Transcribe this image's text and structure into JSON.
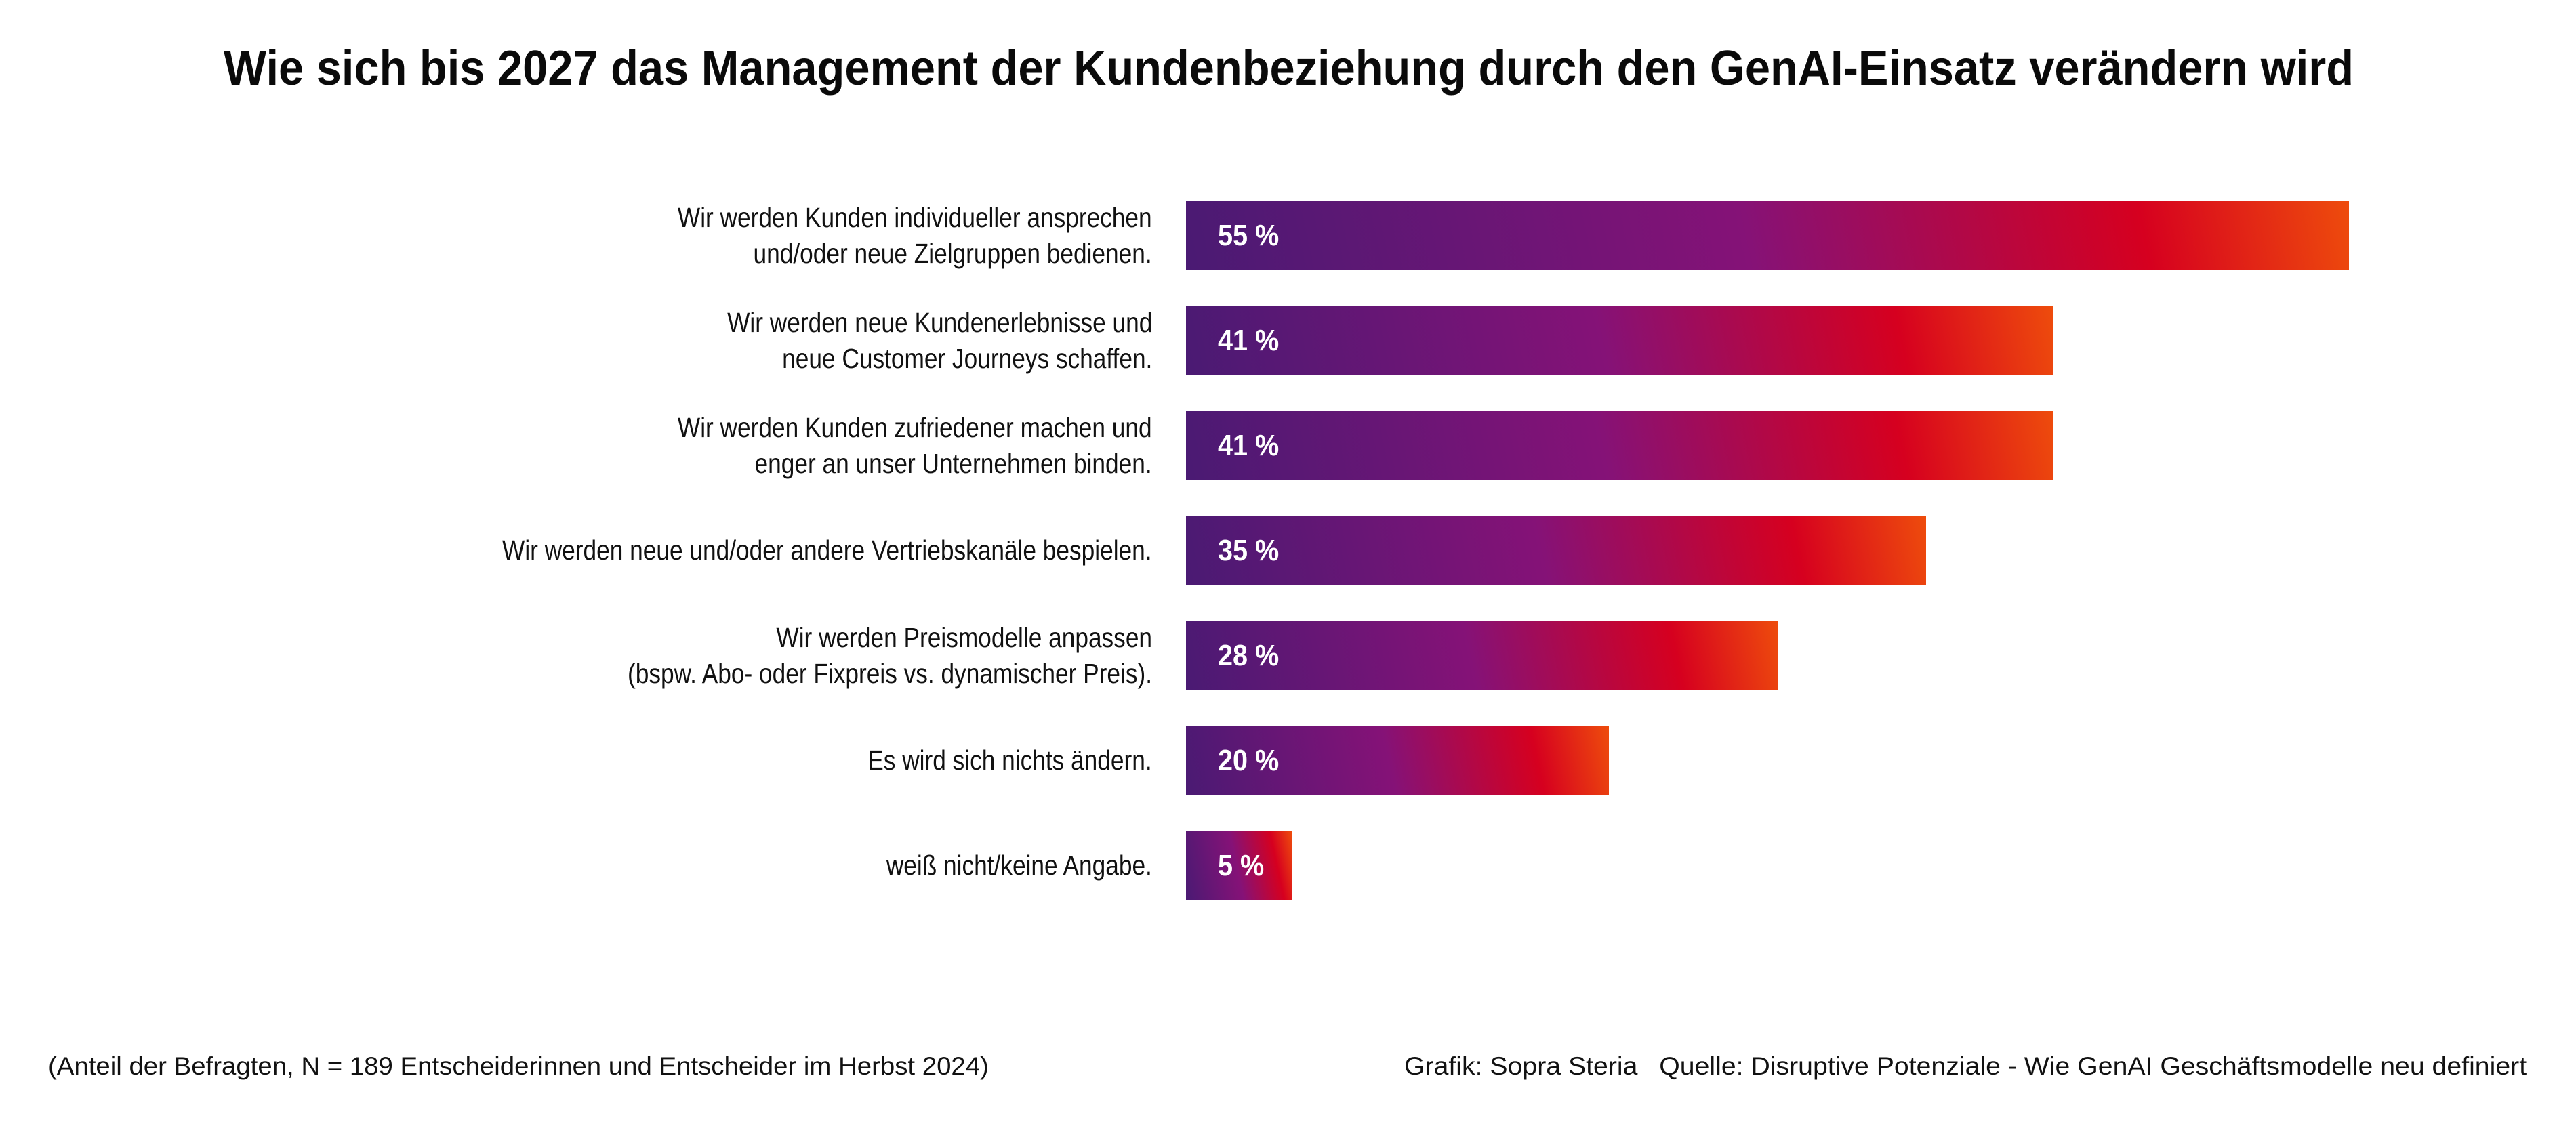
{
  "chart_data": {
    "type": "bar",
    "orientation": "horizontal",
    "title": "Wie sich bis 2027 das Management der Kundenbeziehung durch den GenAI-Einsatz verändern wird",
    "xlabel": "",
    "ylabel": "",
    "xlim": [
      0,
      55
    ],
    "grid": false,
    "legend": "none",
    "unit": "%",
    "categories": [
      "Wir werden Kunden individueller ansprechen und/oder neue Zielgruppen bedienen.",
      "Wir werden neue Kundenerlebnisse und neue Customer Journeys schaffen.",
      "Wir werden Kunden zufriedener machen und enger an unser Unternehmen binden.",
      "Wir werden neue und/oder andere Vertriebskanäle bespielen.",
      "Wir werden Preismodelle anpassen (bspw. Abo- oder Fixpreis vs. dynamischer Preis).",
      "Es wird sich nichts ändern.",
      "weiß nicht/keine Angabe."
    ],
    "category_lines": [
      [
        "Wir werden Kunden individueller ansprechen",
        "und/oder neue Zielgruppen bedienen."
      ],
      [
        "Wir werden neue Kundenerlebnisse und",
        "neue Customer Journeys schaffen."
      ],
      [
        "Wir werden Kunden zufriedener machen und",
        "enger an unser Unternehmen binden."
      ],
      [
        "Wir werden neue und/oder andere Vertriebskanäle bespielen."
      ],
      [
        "Wir werden Preismodelle anpassen",
        "(bspw. Abo- oder Fixpreis vs. dynamischer Preis)."
      ],
      [
        "Es wird sich nichts ändern."
      ],
      [
        "weiß nicht/keine Angabe."
      ]
    ],
    "values": [
      55,
      41,
      41,
      35,
      28,
      20,
      5
    ],
    "data_labels": [
      "55 %",
      "41 %",
      "41 %",
      "35 %",
      "28 %",
      "20 %",
      "5 %"
    ],
    "gradient_colors": [
      "#4a1a73",
      "#851277",
      "#d6001f",
      "#ee4c0c"
    ]
  },
  "footer": {
    "note": "(Anteil der Befragten, N = 189 Entscheiderinnen und Entscheider im Herbst 2024)",
    "credit": "Grafik: Sopra Steria",
    "source": "Quelle: Disruptive Potenziale - Wie GenAI Geschäftsmodelle neu definiert"
  }
}
